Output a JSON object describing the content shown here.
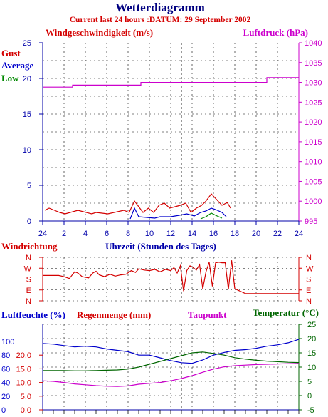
{
  "header": {
    "title": "Wetterdiagramm",
    "subtitle": "Current last 24 hours :DATUM: 29 September 2002"
  },
  "colors": {
    "wind_gust": "#d40000",
    "wind_average": "#0000cc",
    "wind_low": "#008800",
    "pressure": "#cc00cc",
    "direction": "#d40000",
    "humidity": "#0000cc",
    "rain": "#d40000",
    "dewpoint": "#cc00cc",
    "temperature": "#006600",
    "axis_blue": "#0000aa",
    "title": "#000080"
  },
  "chart_data": [
    {
      "type": "line",
      "title": "",
      "left_axis_label": "Windgeschwindigkeit (m/s)",
      "right_axis_label": "Luftdruck (hPa)",
      "xlabel": "Uhrzeit (Stunden des Tages)",
      "ylim_left": [
        0,
        25
      ],
      "ylim_right": [
        995,
        1040
      ],
      "left_ticks": [
        0,
        5,
        10,
        15,
        20,
        25
      ],
      "right_ticks": [
        995,
        1000,
        1005,
        1010,
        1015,
        1020,
        1025,
        1030,
        1035,
        1040
      ],
      "x_ticks": [
        "24",
        "2",
        "4",
        "6",
        "8",
        "10",
        "12",
        "14",
        "16",
        "18",
        "20",
        "22",
        "24"
      ],
      "x_hours": [
        0,
        24
      ],
      "grid": true,
      "series": [
        {
          "name": "Gust",
          "axis": "left",
          "x": [
            0.2,
            0.6,
            1.1,
            1.6,
            2.1,
            3.3,
            4.6,
            5.0,
            6.1,
            7.6,
            8.1,
            8.6,
            9.1,
            9.4,
            9.9,
            10.4,
            10.9,
            11.4,
            11.9,
            12.4,
            12.9,
            13.4,
            13.9,
            14.4,
            14.9,
            15.3,
            15.8,
            16.3,
            16.8,
            17.3,
            17.6
          ],
          "y": [
            1.5,
            1.8,
            1.5,
            1.2,
            1.0,
            1.5,
            1.0,
            1.2,
            1.0,
            1.5,
            1.2,
            2.8,
            1.8,
            1.2,
            1.8,
            1.2,
            2.2,
            2.5,
            1.8,
            2.0,
            2.2,
            2.5,
            1.2,
            1.8,
            2.2,
            2.8,
            3.8,
            3.0,
            2.2,
            2.6,
            1.8
          ]
        },
        {
          "name": "Average",
          "axis": "left",
          "x": [
            8.2,
            8.6,
            9.0,
            10.5,
            11.0,
            12.0,
            12.8,
            13.5,
            14.2,
            14.8,
            15.3,
            15.8,
            16.2,
            16.8,
            17.2
          ],
          "y": [
            0.3,
            1.8,
            0.6,
            0.4,
            0.6,
            0.6,
            0.8,
            1.0,
            0.7,
            1.2,
            1.4,
            1.8,
            1.6,
            1.2,
            0.6
          ]
        },
        {
          "name": "Low",
          "axis": "left",
          "x": [
            14.8,
            15.3,
            15.8,
            16.2,
            16.8
          ],
          "y": [
            0.3,
            0.6,
            1.1,
            0.8,
            0.4
          ]
        },
        {
          "name": "Luftdruck",
          "axis": "right",
          "x": [
            0,
            2.8,
            2.8,
            9.2,
            9.2,
            21.0,
            21.0,
            24.0
          ],
          "y": [
            1028.8,
            1028.8,
            1029.3,
            1029.3,
            1030.0,
            1030.0,
            1031.2,
            1031.2
          ]
        }
      ]
    },
    {
      "type": "line",
      "title": "",
      "left_axis_label": "Windrichtung",
      "xlabel": "",
      "direction_labels": [
        "N",
        "W",
        "S",
        "E",
        "N"
      ],
      "direction_degrees": [
        360,
        270,
        180,
        90,
        0
      ],
      "ylim": [
        0,
        360
      ],
      "x_hours": [
        0,
        24
      ],
      "grid": true,
      "series": [
        {
          "name": "Windrichtung",
          "x": [
            0,
            1.5,
            2.0,
            2.5,
            3.0,
            3.3,
            3.7,
            4.3,
            4.7,
            5.0,
            5.3,
            5.8,
            6.3,
            6.8,
            7.3,
            7.8,
            8.3,
            8.7,
            9.0,
            9.5,
            10.0,
            10.5,
            11.0,
            11.5,
            12.0,
            12.3,
            12.6,
            12.9,
            13.2,
            13.5,
            13.8,
            14.1,
            14.4,
            14.7,
            15.0,
            15.3,
            15.6,
            15.9,
            16.2,
            16.5,
            16.8,
            17.1,
            17.4,
            17.7,
            18.0,
            19.0,
            20.5,
            22.0,
            24.0
          ],
          "y": [
            210,
            210,
            200,
            185,
            240,
            230,
            200,
            190,
            230,
            245,
            215,
            200,
            220,
            205,
            215,
            220,
            250,
            235,
            265,
            255,
            250,
            260,
            240,
            260,
            250,
            275,
            230,
            290,
            80,
            250,
            290,
            275,
            255,
            300,
            100,
            240,
            320,
            120,
            315,
            320,
            315,
            315,
            95,
            335,
            100,
            60,
            60,
            60,
            60
          ]
        }
      ]
    },
    {
      "type": "line",
      "title": "",
      "left_axis_label": "Luftfeuchte (%)",
      "left_axis_label2": "Regenmenge (mm)",
      "right_axis_label": "Taupunkt",
      "right_axis_label2": "Temperatur (°C)",
      "humidity_ticks": [
        0,
        20,
        40,
        60,
        80,
        100
      ],
      "rain_ticks": [
        "0.0",
        "5.0",
        "10.0",
        "15.0",
        "20.0"
      ],
      "temp_ticks": [
        -5,
        0,
        5,
        10,
        15,
        20,
        25
      ],
      "ylim_humidity": [
        0,
        125
      ],
      "ylim_temp": [
        -5,
        25
      ],
      "x_hours": [
        0,
        24
      ],
      "grid": true,
      "series": [
        {
          "name": "Luftfeuchte",
          "axis": "humidity",
          "x": [
            0,
            1,
            2,
            3,
            4,
            5,
            6,
            7,
            8,
            9,
            10,
            11,
            12,
            13,
            14,
            15,
            16,
            17,
            18,
            19,
            20,
            21,
            22,
            23,
            24
          ],
          "y": [
            97,
            96,
            94,
            92,
            93,
            92,
            89,
            87,
            85,
            80,
            80,
            76,
            72,
            69,
            68,
            73,
            80,
            84,
            87,
            88,
            90,
            93,
            95,
            98,
            103
          ]
        },
        {
          "name": "Taupunkt",
          "axis": "temp",
          "x": [
            0,
            1,
            2,
            3,
            4,
            5,
            6,
            7,
            8,
            9,
            10,
            11,
            12,
            13,
            14,
            15,
            16,
            17,
            18,
            19,
            20,
            21,
            22,
            23,
            24
          ],
          "y": [
            5.2,
            5.0,
            4.6,
            4.1,
            3.8,
            3.5,
            3.3,
            3.2,
            3.4,
            4.0,
            4.3,
            4.6,
            5.2,
            6.0,
            7.0,
            8.2,
            9.3,
            10.1,
            10.5,
            10.7,
            10.9,
            11.0,
            11.1,
            11.2,
            11.3
          ]
        },
        {
          "name": "Temperatur",
          "axis": "temp",
          "x": [
            0,
            1,
            2,
            3,
            4,
            5,
            6,
            7,
            8,
            9,
            10,
            11,
            12,
            13,
            14,
            15,
            16,
            17,
            18,
            19,
            20,
            21,
            22,
            23,
            24
          ],
          "y": [
            8.8,
            8.8,
            8.8,
            8.7,
            8.7,
            8.8,
            8.9,
            9.0,
            9.3,
            10.0,
            11.0,
            12.0,
            13.0,
            14.0,
            15.0,
            15.3,
            14.8,
            14.2,
            13.3,
            12.8,
            12.4,
            12.1,
            11.9,
            11.7,
            11.6
          ]
        }
      ]
    }
  ]
}
